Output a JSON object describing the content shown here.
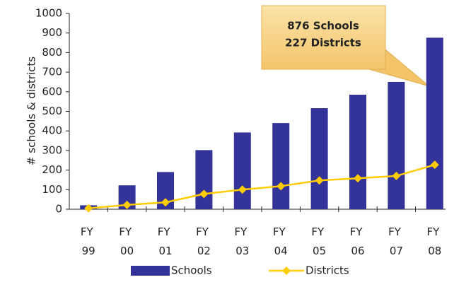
{
  "chart_data": {
    "type": "bar_line",
    "y_label": "# schools & districts",
    "categories": [
      "FY 99",
      "FY 00",
      "FY 01",
      "FY 02",
      "FY 03",
      "FY 04",
      "FY 05",
      "FY 06",
      "FY 07",
      "FY 08"
    ],
    "series": [
      {
        "name": "Schools",
        "type": "bar",
        "color": "#333399",
        "values": [
          20,
          122,
          190,
          302,
          392,
          440,
          516,
          585,
          650,
          876
        ]
      },
      {
        "name": "Districts",
        "type": "line",
        "color": "#ffcc00",
        "values": [
          5,
          22,
          35,
          78,
          100,
          118,
          147,
          158,
          170,
          227
        ]
      }
    ],
    "ylim": [
      0,
      1000
    ],
    "yticks": [
      0,
      100,
      200,
      300,
      400,
      500,
      600,
      700,
      800,
      900,
      1000
    ],
    "annotations": [
      "876 Schools",
      "227 Districts"
    ],
    "legend": "bottom"
  }
}
